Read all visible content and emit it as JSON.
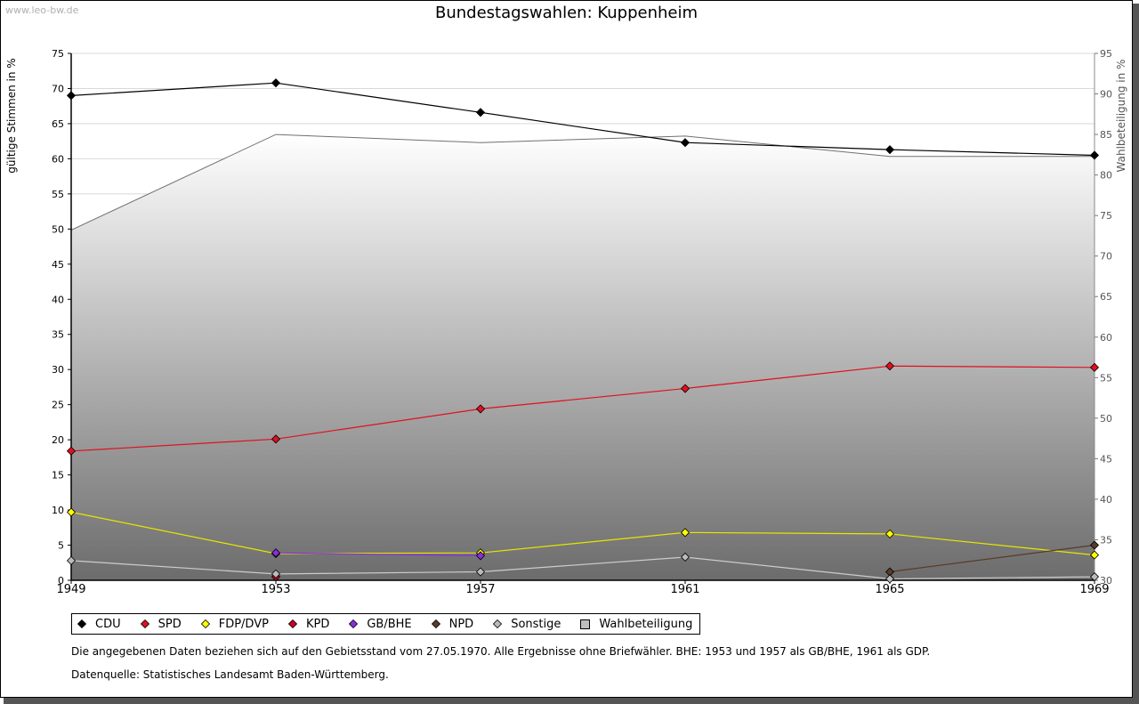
{
  "watermark": "www.leo-bw.de",
  "chart_data": {
    "type": "line",
    "title": "Bundestagswahlen: Kuppenheim",
    "ylabel": "gültige Stimmen in %",
    "y2label": "Wahlbeteiligung in %",
    "x": [
      "1949",
      "1953",
      "1957",
      "1961",
      "1965",
      "1969"
    ],
    "ylim": [
      0,
      75
    ],
    "y_ticks": [
      0,
      5,
      10,
      15,
      20,
      25,
      30,
      35,
      40,
      45,
      50,
      55,
      60,
      65,
      70,
      75
    ],
    "y2lim": [
      30,
      95
    ],
    "y2_ticks": [
      30,
      35,
      40,
      45,
      50,
      55,
      60,
      65,
      70,
      75,
      80,
      85,
      90,
      95
    ],
    "grid": true,
    "legend_position": "bottom",
    "series": [
      {
        "name": "CDU",
        "color": "#000000",
        "line": "#000000",
        "values": [
          69.0,
          70.8,
          66.6,
          62.3,
          61.3,
          60.5
        ]
      },
      {
        "name": "SPD",
        "color": "#e0101e",
        "line": "#e0101e",
        "values": [
          18.4,
          20.1,
          24.4,
          27.3,
          30.5,
          30.3
        ]
      },
      {
        "name": "FDP/DVP",
        "color": "#ffff00",
        "line": "#e6e600",
        "values": [
          9.7,
          3.8,
          3.9,
          6.8,
          6.6,
          3.6
        ]
      },
      {
        "name": "KPD",
        "color": "#c8001e",
        "line": "#c8001e",
        "values": [
          null,
          0.5,
          null,
          null,
          null,
          null
        ]
      },
      {
        "name": "GB/BHE",
        "color": "#8a2be2",
        "line": "#8a2be2",
        "values": [
          null,
          3.9,
          3.5,
          null,
          null,
          null
        ]
      },
      {
        "name": "NPD",
        "color": "#5a3a28",
        "line": "#5a3a28",
        "values": [
          null,
          null,
          null,
          null,
          1.2,
          5.0
        ]
      },
      {
        "name": "Sonstige",
        "color": "#bbbbbb",
        "line": "#cccccc",
        "values": [
          2.8,
          0.9,
          1.2,
          3.3,
          0.2,
          0.5
        ]
      }
    ],
    "turnout": {
      "name": "Wahlbeteiligung",
      "axis": "right",
      "values": [
        73.2,
        85.0,
        84.0,
        84.8,
        82.3,
        82.3
      ]
    }
  },
  "legend": {
    "items": [
      {
        "label": "CDU",
        "color": "#000000"
      },
      {
        "label": "SPD",
        "color": "#e0101e"
      },
      {
        "label": "FDP/DVP",
        "color": "#ffff00"
      },
      {
        "label": "KPD",
        "color": "#c8001e"
      },
      {
        "label": "GB/BHE",
        "color": "#8a2be2"
      },
      {
        "label": "NPD",
        "color": "#5a3a28"
      },
      {
        "label": "Sonstige",
        "color": "#bbbbbb"
      }
    ],
    "turnout_label": "Wahlbeteiligung"
  },
  "footnote": "Die angegebenen Daten beziehen sich auf den Gebietsstand vom 27.05.1970. Alle Ergebnisse ohne Briefwähler. BHE: 1953 und 1957 als GB/BHE, 1961 als GDP.",
  "source": "Datenquelle: Statistisches Landesamt Baden-Württemberg."
}
